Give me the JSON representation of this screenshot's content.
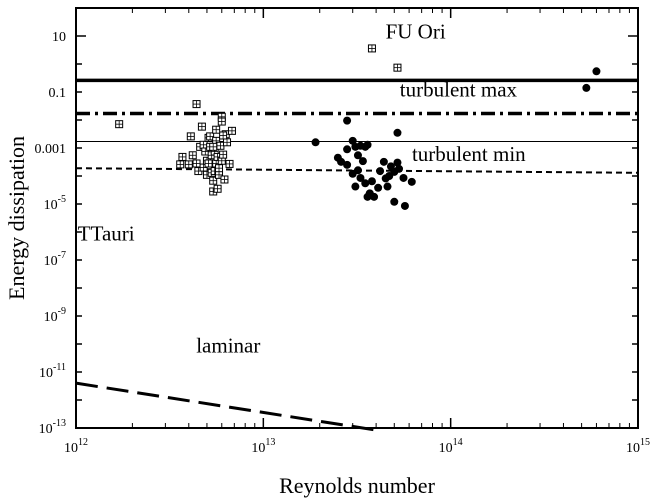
{
  "chart_data": {
    "type": "scatter",
    "title": "",
    "xlabel": "Reynolds number",
    "ylabel": "Energy dissipation",
    "x_scale": "log",
    "y_scale": "log",
    "xlim": [
      1000000000000.0,
      1000000000000000.0
    ],
    "ylim": [
      1e-13,
      100
    ],
    "grid": false,
    "x_ticks": [
      {
        "base": "10",
        "exp": "12",
        "value": 1000000000000.0
      },
      {
        "base": "10",
        "exp": "13",
        "value": 10000000000000.0
      },
      {
        "base": "10",
        "exp": "14",
        "value": 100000000000000.0
      },
      {
        "base": "10",
        "exp": "15",
        "value": 1000000000000000.0
      }
    ],
    "y_ticks": [
      {
        "base": "10",
        "exp": "",
        "value": 10
      },
      {
        "base": "0.1",
        "exp": "",
        "value": 0.1
      },
      {
        "base": "0.001",
        "exp": "",
        "value": 0.001
      },
      {
        "base": "10",
        "exp": "-5",
        "value": 1e-05
      },
      {
        "base": "10",
        "exp": "-7",
        "value": 1e-07
      },
      {
        "base": "10",
        "exp": "-9",
        "value": 1e-09
      },
      {
        "base": "10",
        "exp": "-11",
        "value": 1e-11
      },
      {
        "base": "10",
        "exp": "-13",
        "value": 1e-13
      }
    ],
    "annotations": [
      {
        "text": "FU Ori",
        "x": 65000000000000.0,
        "y": 8
      },
      {
        "text": "turbulent max",
        "x": 110000000000000.0,
        "y": 0.07
      },
      {
        "text": "turbulent min",
        "x": 125000000000000.0,
        "y": 0.00035
      },
      {
        "text": "TTauri",
        "x": 1450000000000.0,
        "y": 5e-07
      },
      {
        "text": "laminar",
        "x": 6500000000000.0,
        "y": 5e-11
      }
    ],
    "lines": [
      {
        "style": "thick-solid",
        "x": [
          1000000000000.0,
          1000000000000000.0
        ],
        "y": [
          0.26,
          0.26
        ]
      },
      {
        "style": "dash-dot",
        "x": [
          1000000000000.0,
          1000000000000000.0
        ],
        "y": [
          0.017,
          0.017
        ]
      },
      {
        "style": "thin-solid",
        "x": [
          1000000000000.0,
          1000000000000000.0
        ],
        "y": [
          0.0017,
          0.0017
        ]
      },
      {
        "style": "short-dash",
        "x": [
          1000000000000.0,
          1000000000000000.0
        ],
        "y": [
          0.00019,
          0.00013
        ]
      },
      {
        "style": "long-dash",
        "x": [
          1000000000000.0,
          40000000000000.0
        ],
        "y": [
          4e-12,
          8.4e-14
        ]
      }
    ],
    "series": [
      {
        "marker": "open-square-cross",
        "points": [
          [
            1700000000000.0,
            0.0071
          ],
          [
            38000000000000.0,
            3.6
          ],
          [
            52000000000000.0,
            0.74
          ],
          [
            4400000000000.0,
            0.037
          ],
          [
            6000000000000.0,
            0.013
          ],
          [
            4100000000000.0,
            0.0026
          ],
          [
            3600000000000.0,
            0.00026
          ],
          [
            3700000000000.0,
            0.00048
          ],
          [
            4000000000000.0,
            0.00026
          ],
          [
            4200000000000.0,
            0.00055
          ],
          [
            4400000000000.0,
            0.00028
          ],
          [
            4500000000000.0,
            0.00015
          ],
          [
            4600000000000.0,
            0.0011
          ],
          [
            4700000000000.0,
            0.0058
          ],
          [
            4800000000000.0,
            0.0013
          ],
          [
            4800000000000.0,
            0.0002
          ],
          [
            4900000000000.0,
            0.00075
          ],
          [
            5000000000000.0,
            0.00035
          ],
          [
            5000000000000.0,
            0.00011
          ],
          [
            5100000000000.0,
            0.0023
          ],
          [
            5100000000000.0,
            0.00028
          ],
          [
            5200000000000.0,
            0.0026
          ],
          [
            5200000000000.0,
            0.0011
          ],
          [
            5300000000000.0,
            0.00055
          ],
          [
            5300000000000.0,
            0.00013
          ],
          [
            5400000000000.0,
            6.8e-05
          ],
          [
            5400000000000.0,
            2.8e-05
          ],
          [
            5500000000000.0,
            0.00015
          ],
          [
            5500000000000.0,
            0.00075
          ],
          [
            5600000000000.0,
            0.00028
          ],
          [
            5600000000000.0,
            0.0018
          ],
          [
            5700000000000.0,
            0.00048
          ],
          [
            5700000000000.0,
            3.5e-05
          ],
          [
            5800000000000.0,
            0.00011
          ],
          [
            5800000000000.0,
            0.00019
          ],
          [
            5900000000000.0,
            0.0012
          ],
          [
            6000000000000.0,
            0.0088
          ],
          [
            6000000000000.0,
            0.00035
          ],
          [
            6100000000000.0,
            0.00058
          ],
          [
            6200000000000.0,
            7.5e-05
          ],
          [
            6300000000000.0,
            0.0031
          ],
          [
            6400000000000.0,
            0.0016
          ],
          [
            6600000000000.0,
            0.00027
          ],
          [
            6800000000000.0,
            0.0041
          ],
          [
            5400000000000.0,
            0.0011
          ],
          [
            6100000000000.0,
            0.0028
          ],
          [
            5600000000000.0,
            0.0045
          ]
        ]
      },
      {
        "marker": "filled-circle",
        "points": [
          [
            530000000000000.0,
            0.14
          ],
          [
            600000000000000.0,
            0.55
          ],
          [
            28000000000000.0,
            0.0095
          ],
          [
            52000000000000.0,
            0.0035
          ],
          [
            19000000000000.0,
            0.0016
          ],
          [
            25000000000000.0,
            0.00045
          ],
          [
            26000000000000.0,
            0.00032
          ],
          [
            28000000000000.0,
            0.0009
          ],
          [
            30000000000000.0,
            0.0018
          ],
          [
            31000000000000.0,
            0.0011
          ],
          [
            32000000000000.0,
            0.00055
          ],
          [
            33000000000000.0,
            0.0012
          ],
          [
            34000000000000.0,
            0.00034
          ],
          [
            35000000000000.0,
            0.0011
          ],
          [
            36000000000000.0,
            0.0013
          ],
          [
            37000000000000.0,
            2.4e-05
          ],
          [
            38000000000000.0,
            6.5e-05
          ],
          [
            39000000000000.0,
            1.8e-05
          ],
          [
            33000000000000.0,
            8.5e-05
          ],
          [
            32000000000000.0,
            0.00016
          ],
          [
            35000000000000.0,
            5.5e-05
          ],
          [
            42000000000000.0,
            0.00015
          ],
          [
            44000000000000.0,
            0.00032
          ],
          [
            45000000000000.0,
            8.2e-05
          ],
          [
            47000000000000.0,
            0.0001
          ],
          [
            48000000000000.0,
            0.00022
          ],
          [
            50000000000000.0,
            0.00014
          ],
          [
            52000000000000.0,
            0.0003
          ],
          [
            53000000000000.0,
            0.00018
          ],
          [
            56000000000000.0,
            8.5e-05
          ],
          [
            62000000000000.0,
            6.2e-05
          ],
          [
            46000000000000.0,
            4.2e-05
          ],
          [
            50000000000000.0,
            1.2e-05
          ],
          [
            57000000000000.0,
            8.5e-06
          ],
          [
            41000000000000.0,
            3.8e-05
          ],
          [
            36000000000000.0,
            1.8e-05
          ],
          [
            31000000000000.0,
            4.2e-05
          ],
          [
            28000000000000.0,
            0.00025
          ],
          [
            30000000000000.0,
            0.00012
          ]
        ]
      }
    ]
  }
}
